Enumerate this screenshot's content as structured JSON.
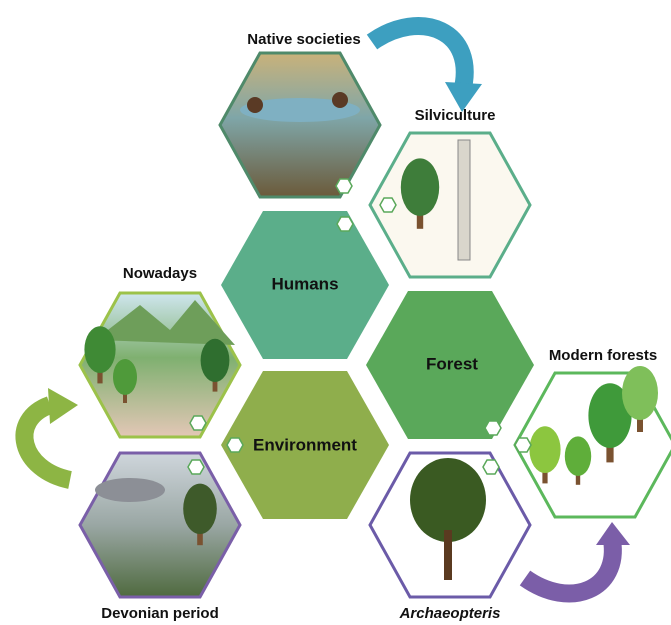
{
  "nodes": [
    {
      "label": "Native societies"
    },
    {
      "label": "Silviculture"
    },
    {
      "label": "Humans"
    },
    {
      "label": "Forest"
    },
    {
      "label": "Environment"
    },
    {
      "label": "Nowadays"
    },
    {
      "label": "Modern forests"
    },
    {
      "label": "Devonian period"
    },
    {
      "label": "Archaeopteris"
    }
  ]
}
